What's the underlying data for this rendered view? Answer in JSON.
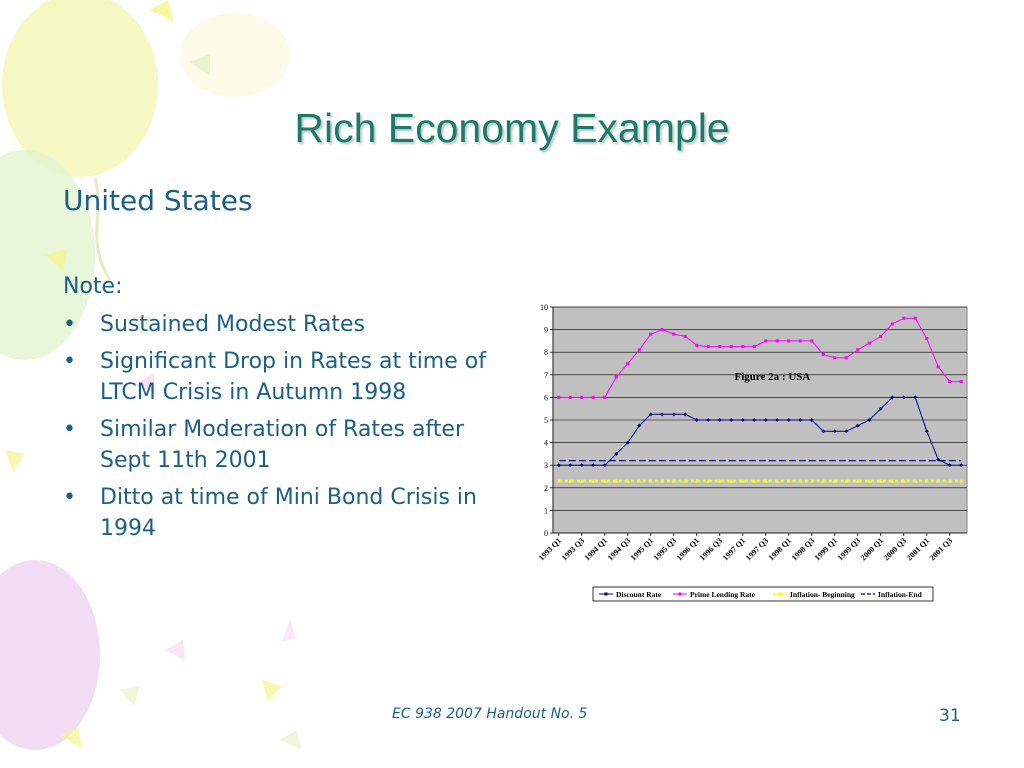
{
  "slide": {
    "title": "Rich Economy Example",
    "subtitle": "United States",
    "note_heading": "Note:",
    "bullets": [
      "Sustained Modest Rates",
      "Significant Drop in Rates at time of LTCM Crisis in Autumn 1998",
      "Similar Moderation of Rates after Sept 11th 2001",
      "Ditto at time of Mini Bond Crisis in 1994"
    ],
    "footer": "EC 938 2007 Handout No. 5",
    "page_number": "31"
  },
  "colors": {
    "title": "#1f7a6e",
    "body_text": "#1c5f86",
    "plot_background": "#c0c0c0",
    "discount_rate": "#000080",
    "prime_lending_rate": "#ff00ff",
    "inflation_beginning": "#ffff00",
    "inflation_end": "#000080"
  },
  "chart_data": {
    "type": "line",
    "title": "Figure 2a : USA",
    "xlabel": "",
    "ylabel": "",
    "ylim": [
      0,
      10
    ],
    "yticks": [
      0,
      1,
      2,
      3,
      4,
      5,
      6,
      7,
      8,
      9,
      10
    ],
    "grid": true,
    "legend_position": "bottom",
    "categories": [
      "1993 Q1",
      "1993 Q2",
      "1993 Q3",
      "1993 Q4",
      "1994 Q1",
      "1994 Q2",
      "1994 Q3",
      "1994 Q4",
      "1995 Q1",
      "1995 Q2",
      "1995 Q3",
      "1995 Q4",
      "1996 Q1",
      "1996 Q2",
      "1996 Q3",
      "1996 Q4",
      "1997 Q1",
      "1997 Q2",
      "1997 Q3",
      "1997 Q4",
      "1998 Q1",
      "1998 Q2",
      "1998 Q3",
      "1998 Q4",
      "1999 Q1",
      "1999 Q2",
      "1999 Q3",
      "1999 Q4",
      "2000 Q1",
      "2000 Q2",
      "2000 Q3",
      "2000 Q4",
      "2001 Q1",
      "2001 Q2",
      "2001 Q3",
      "2001 Q4"
    ],
    "tick_labels": [
      "1993 Q1",
      "1993 Q3",
      "1994 Q1",
      "1994 Q3",
      "1995 Q1",
      "1995 Q3",
      "1996 Q1",
      "1996 Q3",
      "1997 Q1",
      "1997 Q3",
      "1998 Q1",
      "1998 Q3",
      "1999 Q1",
      "1999 Q3",
      "2000 Q1",
      "2000 Q3",
      "2001 Q1",
      "2001 Q3"
    ],
    "series": [
      {
        "name": "Discount Rate",
        "values": [
          3,
          3,
          3,
          3,
          3,
          3.5,
          4,
          4.75,
          5.25,
          5.25,
          5.25,
          5.25,
          5,
          5,
          5,
          5,
          5,
          5,
          5,
          5,
          5,
          5,
          5,
          4.5,
          4.5,
          4.5,
          4.75,
          5,
          5.5,
          6,
          6,
          6,
          4.5,
          3.25,
          3,
          3
        ]
      },
      {
        "name": "Prime Lending Rate",
        "values": [
          6,
          6,
          6,
          6,
          6,
          6.9,
          7.5,
          8.1,
          8.8,
          9,
          8.8,
          8.7,
          8.3,
          8.25,
          8.25,
          8.25,
          8.25,
          8.25,
          8.5,
          8.5,
          8.5,
          8.5,
          8.5,
          7.9,
          7.75,
          7.75,
          8.1,
          8.4,
          8.7,
          9.25,
          9.5,
          9.5,
          8.6,
          7.35,
          6.7,
          6.7
        ]
      },
      {
        "name": "Inflation- Beginning",
        "values": [
          2.3,
          2.3,
          2.3,
          2.3,
          2.3,
          2.3,
          2.3,
          2.3,
          2.3,
          2.3,
          2.3,
          2.3,
          2.3,
          2.3,
          2.3,
          2.3,
          2.3,
          2.3,
          2.3,
          2.3,
          2.3,
          2.3,
          2.3,
          2.3,
          2.3,
          2.3,
          2.3,
          2.3,
          2.3,
          2.3,
          2.3,
          2.3,
          2.3,
          2.3,
          2.3,
          2.3
        ]
      },
      {
        "name": "Inflation-End",
        "values": [
          3.2,
          3.2,
          3.2,
          3.2,
          3.2,
          3.2,
          3.2,
          3.2,
          3.2,
          3.2,
          3.2,
          3.2,
          3.2,
          3.2,
          3.2,
          3.2,
          3.2,
          3.2,
          3.2,
          3.2,
          3.2,
          3.2,
          3.2,
          3.2,
          3.2,
          3.2,
          3.2,
          3.2,
          3.2,
          3.2,
          3.2,
          3.2,
          3.2,
          3.2,
          3.2,
          3.2
        ]
      }
    ]
  }
}
